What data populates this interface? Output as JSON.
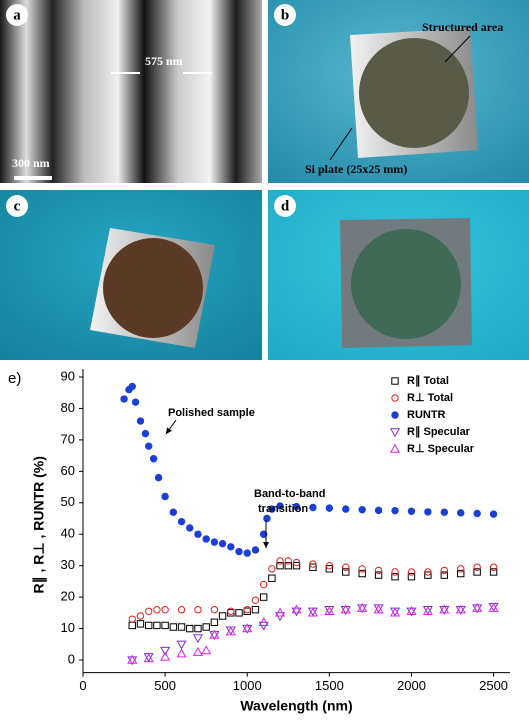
{
  "panels": [
    {
      "label": "a",
      "annotations": [
        "575 nm",
        "300 nm"
      ]
    },
    {
      "label": "b",
      "annotations": [
        "Structured area",
        "Si plate (25x25 mm)"
      ]
    },
    {
      "label": "c"
    },
    {
      "label": "d"
    }
  ],
  "chart_label": "e)",
  "chart_data": {
    "type": "scatter",
    "xlabel": "Wavelength (nm)",
    "ylabel": "R∥ , R⊥ , RUNTR (%)",
    "xlim": [
      0,
      2600
    ],
    "ylim": [
      -4,
      90
    ],
    "xticks": [
      0,
      500,
      1000,
      1500,
      2000,
      2500
    ],
    "yticks": [
      0,
      10,
      20,
      30,
      40,
      50,
      60,
      70,
      80,
      90
    ],
    "legend": "upper right",
    "annotations": [
      {
        "lines": [
          "Polished sample"
        ]
      },
      {
        "lines": [
          "Band-to-band",
          "transition"
        ]
      }
    ],
    "series": [
      {
        "name": "R∥ Total",
        "color": "#000000",
        "marker": "square-open",
        "x": [
          300,
          350,
          400,
          450,
          500,
          550,
          600,
          650,
          700,
          750,
          800,
          850,
          900,
          950,
          1000,
          1050,
          1100,
          1150,
          1200,
          1250,
          1300,
          1400,
          1500,
          1600,
          1700,
          1800,
          1900,
          2000,
          2100,
          2200,
          2300,
          2400,
          2500
        ],
        "values": [
          11,
          11.5,
          11,
          11,
          11,
          10.5,
          10.5,
          10,
          10,
          10.5,
          12,
          14,
          15,
          15,
          15.5,
          16,
          20,
          26,
          30,
          30,
          30,
          29.5,
          29,
          28,
          27.5,
          27,
          26.5,
          26.5,
          27,
          27,
          27.5,
          28,
          28
        ]
      },
      {
        "name": "R⊥ Total",
        "color": "#e0201b",
        "marker": "circle-open",
        "x": [
          300,
          350,
          400,
          450,
          500,
          600,
          700,
          800,
          900,
          1000,
          1050,
          1100,
          1150,
          1200,
          1250,
          1300,
          1400,
          1500,
          1600,
          1700,
          1800,
          1900,
          2000,
          2100,
          2200,
          2300,
          2400,
          2500
        ],
        "values": [
          13,
          14,
          15.5,
          16,
          16,
          16,
          16,
          16,
          15.5,
          16,
          19,
          24,
          29,
          31.5,
          31.5,
          31,
          30.5,
          30,
          29.5,
          29,
          28.5,
          28,
          28,
          28,
          28.5,
          29,
          29.5,
          29.5
        ]
      },
      {
        "name": "RUNTR",
        "color": "#1a3fd6",
        "marker": "circle-filled",
        "x": [
          250,
          280,
          300,
          320,
          350,
          380,
          400,
          430,
          460,
          500,
          550,
          600,
          650,
          700,
          750,
          800,
          850,
          900,
          950,
          1000,
          1050,
          1100,
          1120,
          1150,
          1200,
          1300,
          1400,
          1500,
          1600,
          1700,
          1800,
          1900,
          2000,
          2100,
          2200,
          2300,
          2400,
          2500
        ],
        "values": [
          83,
          86,
          87,
          82,
          76,
          72,
          68,
          64,
          58,
          52,
          47,
          44,
          42,
          40,
          38.5,
          37.5,
          37,
          36,
          34.5,
          34,
          35,
          40,
          45,
          48,
          49,
          48.8,
          48.5,
          48.3,
          48,
          47.8,
          47.6,
          47.5,
          47.3,
          47.1,
          47,
          46.8,
          46.6,
          46.4
        ]
      },
      {
        "name": "R∥ Specular",
        "color": "#7a2fd0",
        "marker": "triangle-down-open",
        "x": [
          300,
          400,
          500,
          600,
          700,
          800,
          900,
          1000,
          1100,
          1200,
          1300,
          1400,
          1500,
          1600,
          1700,
          1800,
          1900,
          2000,
          2100,
          2200,
          2300,
          2400,
          2500
        ],
        "values": [
          0,
          1,
          3,
          5,
          7,
          8,
          9.5,
          10,
          11,
          14,
          15.5,
          15.5,
          16,
          16,
          16.5,
          16.5,
          15.5,
          15.5,
          16,
          16,
          16,
          16.5,
          17
        ]
      },
      {
        "name": "R⊥ Specular",
        "color": "#e020e0",
        "marker": "triangle-up-open",
        "x": [
          300,
          400,
          500,
          600,
          700,
          750,
          800,
          900,
          1000,
          1100,
          1200,
          1300,
          1400,
          1500,
          1600,
          1700,
          1800,
          1900,
          2000,
          2100,
          2200,
          2300,
          2400,
          2500
        ],
        "values": [
          0,
          0.5,
          1,
          2,
          2.5,
          3,
          8,
          9,
          10,
          12,
          15,
          16,
          15,
          15.5,
          16,
          16.5,
          16,
          15,
          15.5,
          15.5,
          16,
          16,
          16.5,
          16.5
        ]
      }
    ]
  }
}
